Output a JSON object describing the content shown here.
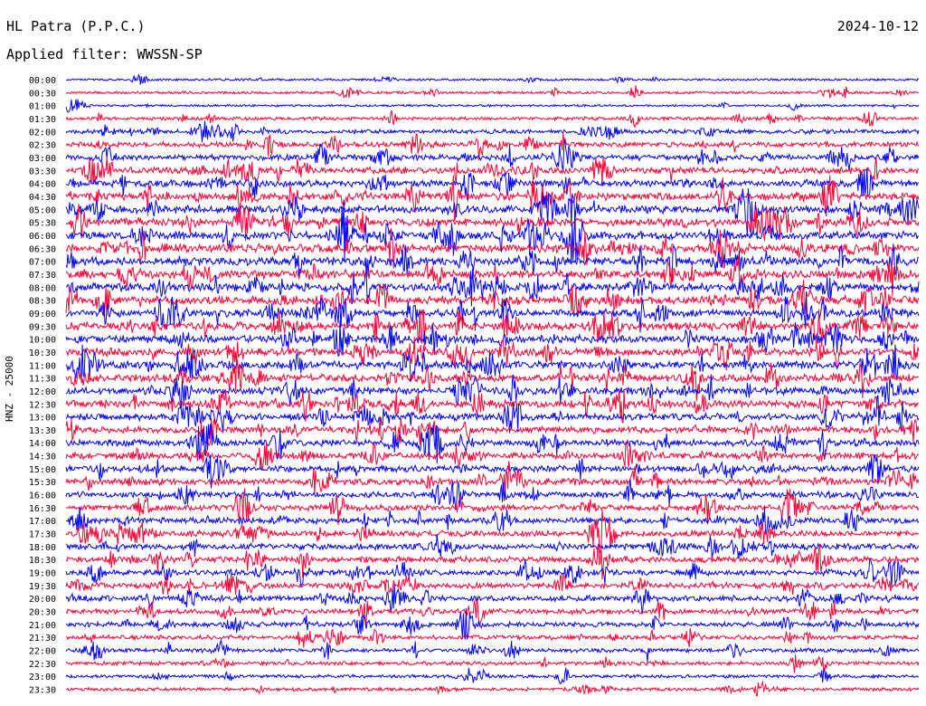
{
  "header": {
    "station": "HL Patra (P.P.C.)",
    "date": "2024-10-12",
    "filter": "Applied filter: WWSSN-SP",
    "channel": "HNZ - 25000"
  },
  "colors": {
    "odd": "#0000ff",
    "even": "#ff0033",
    "text": "#000000"
  },
  "chart_data": {
    "type": "line",
    "title": "HL Patra (P.P.C.)",
    "subtitle": "Applied filter: WWSSN-SP",
    "ylabel": "HNZ - 25000",
    "xlabel": "",
    "grid": false,
    "rows": [
      "00:00",
      "00:30",
      "01:00",
      "01:30",
      "02:00",
      "02:30",
      "03:00",
      "03:30",
      "04:00",
      "04:30",
      "05:00",
      "05:30",
      "06:00",
      "06:30",
      "07:00",
      "07:30",
      "08:00",
      "08:30",
      "09:00",
      "09:30",
      "10:00",
      "10:30",
      "11:00",
      "11:30",
      "12:00",
      "12:30",
      "13:00",
      "13:30",
      "14:00",
      "14:30",
      "15:00",
      "15:30",
      "16:00",
      "16:30",
      "17:00",
      "17:30",
      "18:00",
      "18:30",
      "19:00",
      "19:30",
      "20:00",
      "20:30",
      "21:00",
      "21:30",
      "22:00",
      "22:30",
      "23:00",
      "23:30"
    ],
    "relative_activity": [
      0.15,
      0.2,
      0.15,
      0.3,
      0.45,
      0.55,
      0.6,
      0.75,
      0.8,
      0.85,
      0.85,
      0.9,
      0.95,
      0.95,
      0.95,
      0.95,
      0.95,
      0.95,
      0.9,
      0.9,
      0.9,
      0.9,
      0.9,
      0.85,
      0.85,
      0.85,
      0.8,
      0.75,
      0.75,
      0.7,
      0.7,
      0.7,
      0.65,
      0.65,
      0.65,
      0.65,
      0.65,
      0.65,
      0.65,
      0.65,
      0.6,
      0.55,
      0.5,
      0.45,
      0.4,
      0.35,
      0.3,
      0.3
    ]
  }
}
